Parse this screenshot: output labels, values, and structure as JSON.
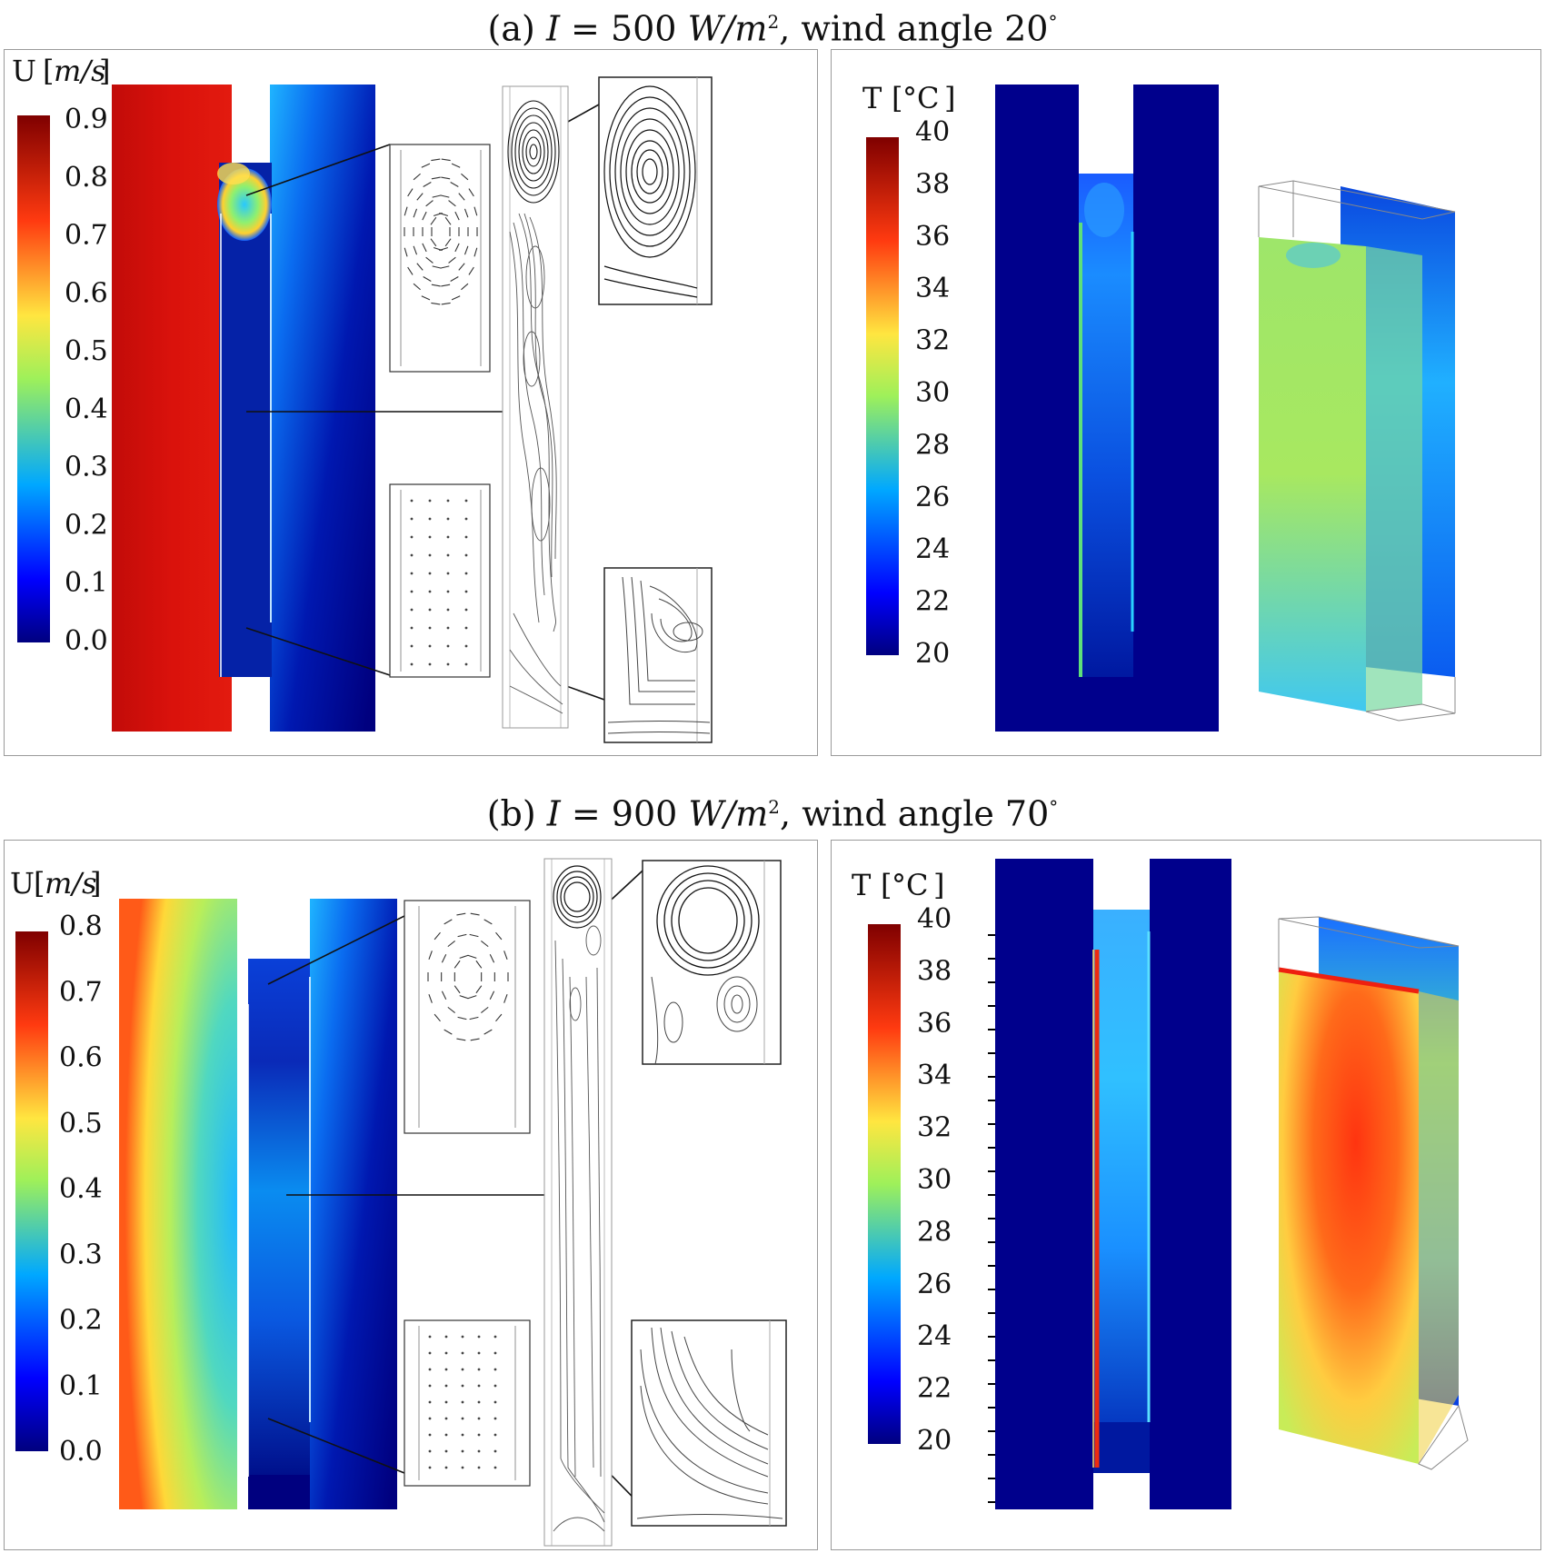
{
  "figure_a": {
    "title": {
      "prefix": "(a) ",
      "var": "I",
      "eq": " = 500 ",
      "unit": "W/m",
      "sup": "2",
      "rest": ", wind angle 20",
      "deg": "°"
    },
    "velocity_legend": {
      "symbol": "U",
      "unit": "m/s",
      "ticks": [
        "0.9",
        "0.8",
        "0.7",
        "0.6",
        "0.5",
        "0.4",
        "0.3",
        "0.2",
        "0.1",
        "0.0"
      ]
    },
    "temperature_legend": {
      "symbol": "T",
      "unit": "°C",
      "ticks": [
        "40",
        "38",
        "36",
        "34",
        "32",
        "30",
        "28",
        "26",
        "24",
        "22",
        "20"
      ]
    }
  },
  "figure_b": {
    "title": {
      "prefix": "(b) ",
      "var": "I",
      "eq": " = 900 ",
      "unit": "W/m",
      "sup": "2",
      "rest": ", wind angle 70",
      "deg": "°"
    },
    "velocity_legend": {
      "symbol": "U",
      "unit": "m/s",
      "ticks": [
        "0.8",
        "0.7",
        "0.6",
        "0.5",
        "0.4",
        "0.3",
        "0.2",
        "0.1",
        "0.0"
      ]
    },
    "temperature_legend": {
      "symbol": "T",
      "unit": "°C",
      "ticks": [
        "40",
        "38",
        "36",
        "34",
        "32",
        "30",
        "28",
        "26",
        "24",
        "22",
        "20"
      ]
    }
  },
  "colors": {
    "jet_dark_blue": "#00007f",
    "jet_blue": "#0050ff",
    "jet_cyan": "#1fc8ff",
    "jet_green": "#9ef05a",
    "jet_yellow": "#ffe640",
    "jet_orange": "#ff8c1a",
    "jet_red": "#ee1a10",
    "jet_dark_red": "#7f0000"
  }
}
